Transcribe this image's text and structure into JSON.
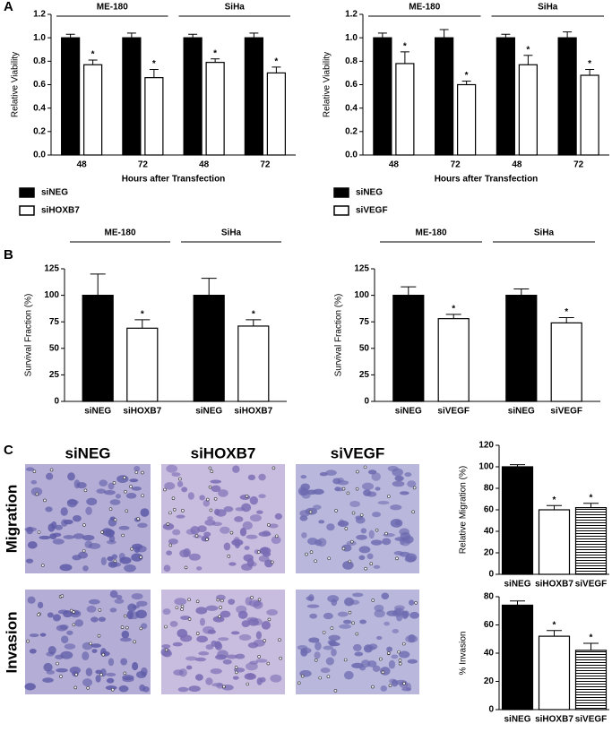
{
  "figure": {
    "panel_labels": [
      "A",
      "B",
      "C"
    ],
    "image_columns": [
      "siNEG",
      "siHOXB7",
      "siVEGF"
    ],
    "image_rows": [
      "Migration",
      "Invasion"
    ]
  },
  "chart_data": [
    {
      "type": "bar",
      "y_label": "Relative Viability",
      "x_label": "Hours after Transfection",
      "categories": [
        "48",
        "72",
        "48",
        "72"
      ],
      "group_labels": [
        "ME-180",
        "SiHa"
      ],
      "series": [
        {
          "name": "siNEG",
          "color": "#000000",
          "values": [
            1,
            1,
            1,
            1
          ],
          "errors": [
            0.03,
            0.04,
            0.03,
            0.04
          ]
        },
        {
          "name": "siHOXB7",
          "color": "#ffffff",
          "values": [
            0.77,
            0.66,
            0.79,
            0.7
          ],
          "errors": [
            0.04,
            0.07,
            0.03,
            0.05
          ],
          "significance": [
            "*",
            "*",
            "*",
            "*"
          ]
        }
      ],
      "ylim": [
        0,
        1.2
      ],
      "yticks": [
        {
          "value": 0,
          "label": "0.0"
        },
        0.2,
        0.4,
        0.6,
        0.8,
        {
          "value": 1,
          "label": "1.0"
        },
        1.2
      ],
      "legend": "below-left"
    },
    {
      "type": "bar",
      "y_label": "Relative Viability",
      "x_label": "Hours after Transfection",
      "categories": [
        "48",
        "72",
        "48",
        "72"
      ],
      "group_labels": [
        "ME-180",
        "SiHa"
      ],
      "series": [
        {
          "name": "siNEG",
          "color": "#000000",
          "values": [
            1,
            1,
            1,
            1
          ],
          "errors": [
            0.04,
            0.07,
            0.03,
            0.05
          ]
        },
        {
          "name": "siVEGF",
          "color": "#ffffff",
          "values": [
            0.78,
            0.6,
            0.77,
            0.68
          ],
          "errors": [
            0.1,
            0.03,
            0.08,
            0.05
          ],
          "significance": [
            "*",
            "*",
            "*",
            "*"
          ]
        }
      ],
      "ylim": [
        0,
        1.2
      ],
      "yticks": [
        {
          "value": 0,
          "label": "0.0"
        },
        0.2,
        0.4,
        0.6,
        0.8,
        {
          "value": 1,
          "label": "1.0"
        },
        1.2
      ],
      "legend": "below-left"
    },
    {
      "type": "bar",
      "y_label": "Survival  Fraction  (%)",
      "categories": [
        "siNEG",
        "siHOXB7",
        "siNEG",
        "siHOXB7"
      ],
      "group_labels": [
        "ME-180",
        "SiHa"
      ],
      "values": [
        100,
        69,
        100,
        71
      ],
      "errors": [
        20,
        8,
        16,
        6
      ],
      "significance": [
        null,
        "*",
        null,
        "*"
      ],
      "colors": [
        "#000000",
        "#ffffff",
        "#000000",
        "#ffffff"
      ],
      "ylim": [
        0,
        125
      ],
      "yticks": [
        0,
        25,
        50,
        75,
        100,
        125
      ]
    },
    {
      "type": "bar",
      "y_label": "Survival  Fraction  (%)",
      "categories": [
        "siNEG",
        "siVEGF",
        "siNEG",
        "siVEGF"
      ],
      "group_labels": [
        "ME-180",
        "SiHa"
      ],
      "values": [
        100,
        78,
        100,
        74
      ],
      "errors": [
        8,
        4,
        6,
        5
      ],
      "significance": [
        null,
        "*",
        null,
        "*"
      ],
      "colors": [
        "#000000",
        "#ffffff",
        "#000000",
        "#ffffff"
      ],
      "ylim": [
        0,
        125
      ],
      "yticks": [
        0,
        25,
        50,
        75,
        100,
        125
      ]
    },
    {
      "type": "bar",
      "y_label": "Relative Migration (%)",
      "categories": [
        "siNEG",
        "siHOXB7",
        "siVEGF"
      ],
      "values": [
        100,
        60,
        62
      ],
      "errors": [
        2,
        4,
        4
      ],
      "significance": [
        null,
        "*",
        "*"
      ],
      "colors": [
        "#000000",
        "#ffffff",
        "#ffffff"
      ],
      "hatch": [
        false,
        false,
        true
      ],
      "ylim": [
        0,
        120
      ],
      "yticks": [
        0,
        20,
        40,
        60,
        80,
        100,
        120
      ]
    },
    {
      "type": "bar",
      "y_label": "% Invasion",
      "categories": [
        "siNEG",
        "siHOXB7",
        "siVEGF"
      ],
      "values": [
        74,
        52,
        42
      ],
      "errors": [
        3,
        4,
        5
      ],
      "significance": [
        null,
        "*",
        "*"
      ],
      "colors": [
        "#000000",
        "#ffffff",
        "#ffffff"
      ],
      "hatch": [
        false,
        false,
        true
      ],
      "ylim": [
        0,
        80
      ],
      "yticks": [
        0,
        20,
        40,
        60,
        80
      ]
    }
  ]
}
